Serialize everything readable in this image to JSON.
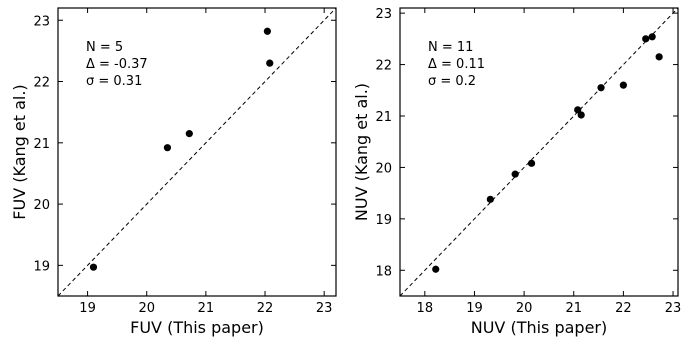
{
  "chart_data": [
    {
      "type": "scatter",
      "xlabel": "FUV (This paper)",
      "ylabel": "FUV (Kang et al.)",
      "xlim": [
        18.5,
        23.2
      ],
      "ylim": [
        18.5,
        23.2
      ],
      "xticks": [
        "19",
        "20",
        "21",
        "22",
        "23"
      ],
      "yticks": [
        "19",
        "20",
        "21",
        "22",
        "23"
      ],
      "tick_values": [
        19,
        20,
        21,
        22,
        23
      ],
      "reference_line": "y = x (dashed)",
      "annotations": [
        "N = 5",
        "Δ = -0.37",
        "σ = 0.31"
      ],
      "points": [
        {
          "x": 19.1,
          "y": 18.97
        },
        {
          "x": 20.35,
          "y": 20.92
        },
        {
          "x": 20.72,
          "y": 21.15
        },
        {
          "x": 22.04,
          "y": 22.82
        },
        {
          "x": 22.08,
          "y": 22.3
        }
      ]
    },
    {
      "type": "scatter",
      "xlabel": "NUV (This paper)",
      "ylabel": "NUV (Kang et al.)",
      "xlim": [
        17.5,
        23.1
      ],
      "ylim": [
        17.5,
        23.1
      ],
      "xticks": [
        "18",
        "19",
        "20",
        "21",
        "22",
        "23"
      ],
      "yticks": [
        "18",
        "19",
        "20",
        "21",
        "22",
        "23"
      ],
      "tick_values": [
        18,
        19,
        20,
        21,
        22,
        23
      ],
      "reference_line": "y = x (dashed)",
      "annotations": [
        "N = 11",
        "Δ = 0.11",
        "σ = 0.2"
      ],
      "points": [
        {
          "x": 18.22,
          "y": 18.02
        },
        {
          "x": 19.32,
          "y": 19.38
        },
        {
          "x": 19.82,
          "y": 19.87
        },
        {
          "x": 20.15,
          "y": 20.08
        },
        {
          "x": 21.08,
          "y": 21.12
        },
        {
          "x": 21.15,
          "y": 21.02
        },
        {
          "x": 21.55,
          "y": 21.55
        },
        {
          "x": 22.0,
          "y": 21.6
        },
        {
          "x": 22.45,
          "y": 22.5
        },
        {
          "x": 22.58,
          "y": 22.54
        },
        {
          "x": 22.72,
          "y": 22.15
        }
      ]
    }
  ]
}
